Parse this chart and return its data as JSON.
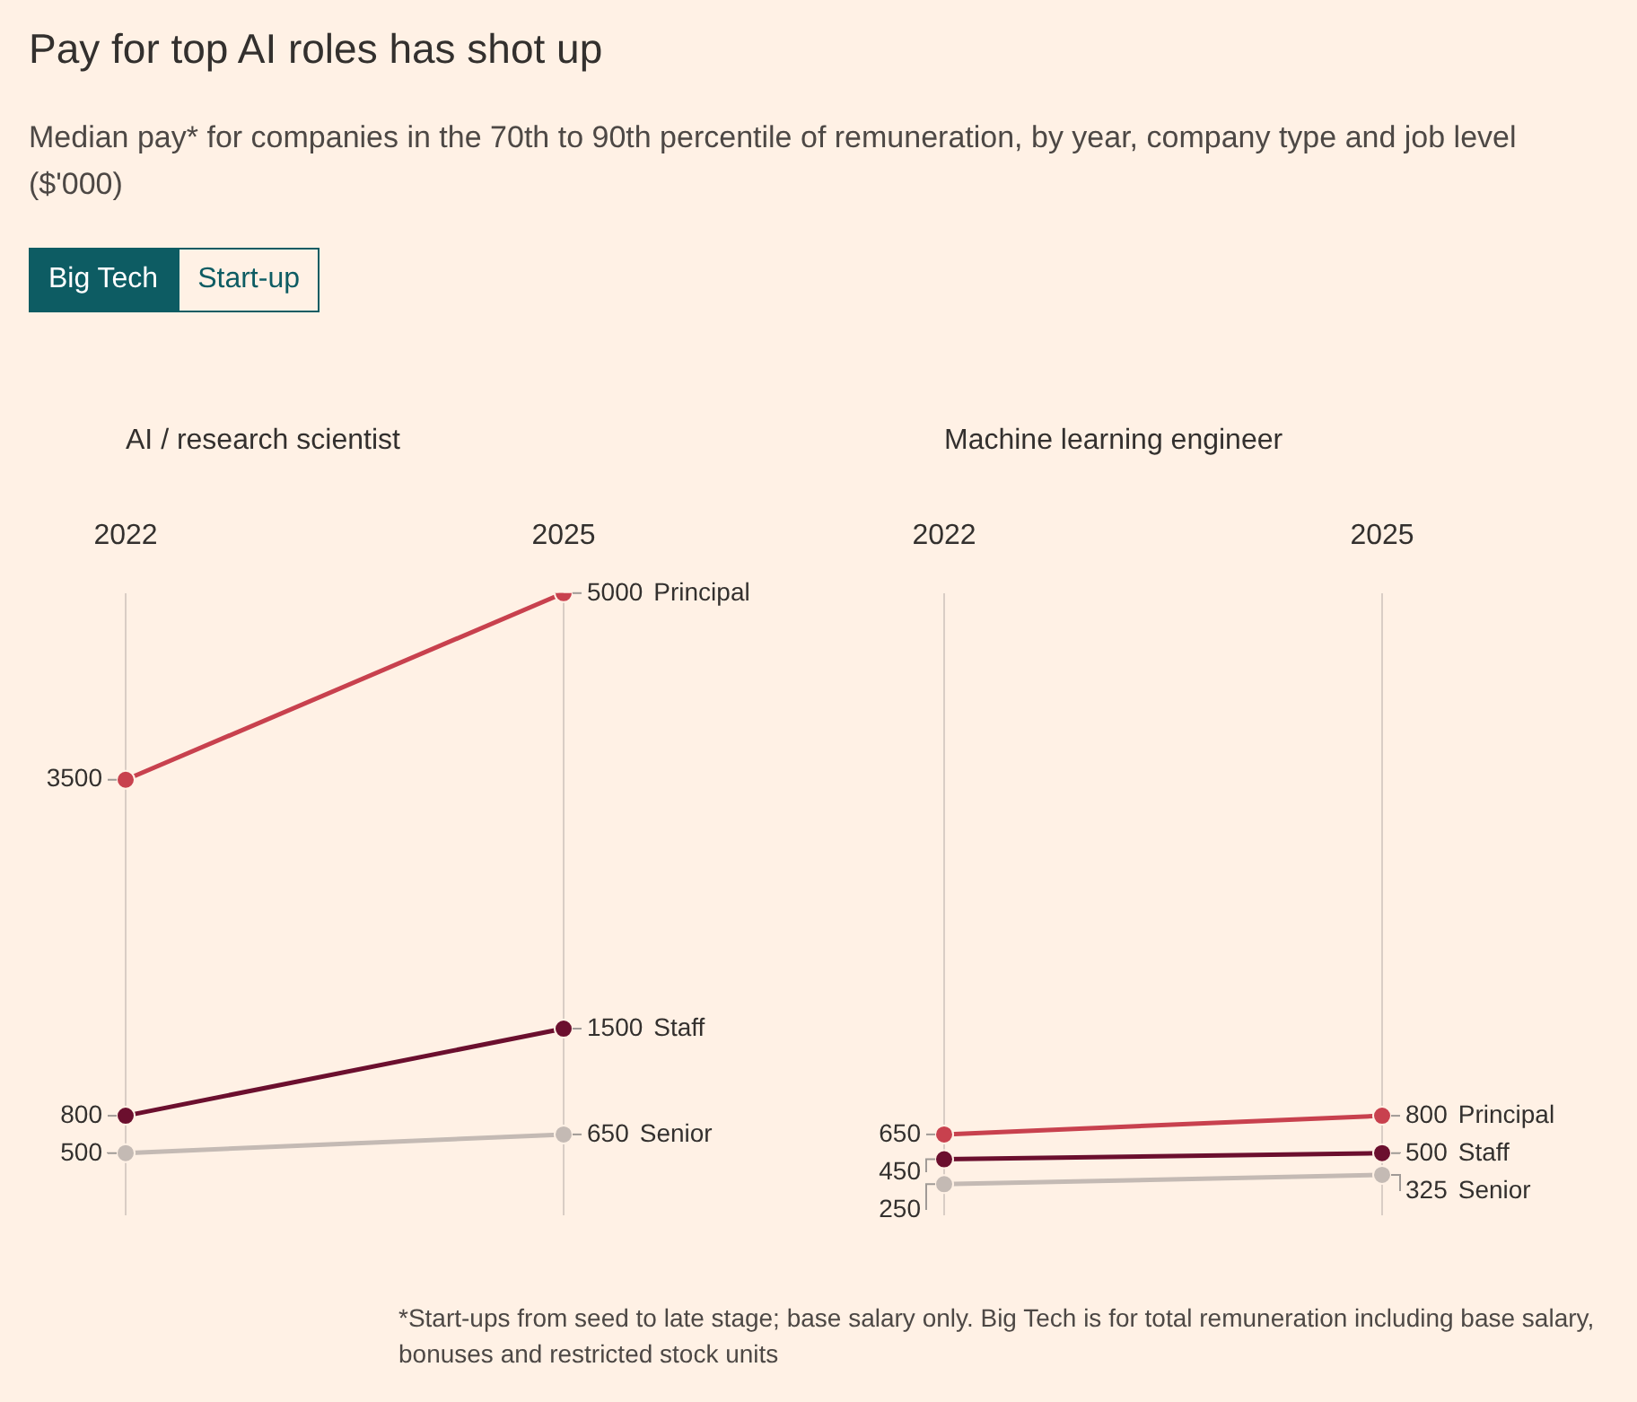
{
  "chart_data": [
    {
      "type": "other",
      "title": "Pay for top AI roles has shot up",
      "subtitle": "Median pay* for companies in the 70th to 90th percentile of remuneration, by year, company type and job level ($'000)",
      "annotations": [
        "Big Tech",
        "Start-up"
      ]
    },
    {
      "type": "line",
      "title": "AI / research scientist",
      "categories": [
        "2022",
        "2025"
      ],
      "grid": "x",
      "legend": false,
      "marker": "circle",
      "line_style": "solid",
      "data_labels": true,
      "series": [
        {
          "name": "Principal",
          "color": "#c8414e",
          "values": [
            3500,
            5000
          ]
        },
        {
          "name": "Staff",
          "color": "#6b0f2e",
          "values": [
            800,
            1500
          ]
        },
        {
          "name": "Senior",
          "color": "#c4bab4",
          "values": [
            500,
            650
          ]
        }
      ]
    },
    {
      "type": "line",
      "title": "Machine learning engineer",
      "categories": [
        "2022",
        "2025"
      ],
      "grid": "x",
      "legend": false,
      "marker": "circle",
      "line_style": "solid",
      "data_labels": true,
      "series": [
        {
          "name": "Principal",
          "color": "#c8414e",
          "values": [
            650,
            800
          ]
        },
        {
          "name": "Staff",
          "color": "#6b0f2e",
          "values": [
            450,
            500
          ]
        },
        {
          "name": "Senior",
          "color": "#c4bab4",
          "values": [
            250,
            325
          ]
        }
      ],
      "annotations": [
        "*Start-ups from seed to late stage; base salary only. Big Tech is for total remuneration including base salary, bonuses and restricted stock units"
      ]
    }
  ]
}
